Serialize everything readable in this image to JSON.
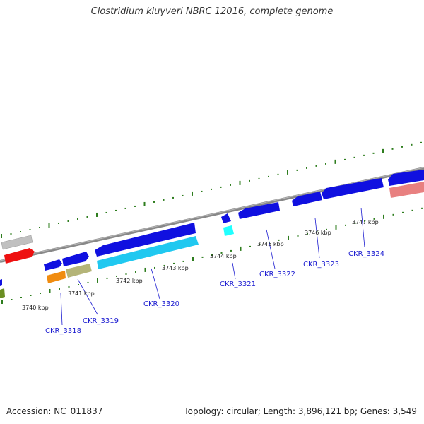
{
  "title": "Clostridium kluyveri NBRC 12016, complete genome",
  "footer": {
    "accession": "Accession: NC_011837",
    "summary": "Topology: circular; Length: 3,896,121 bp; Genes: 3,549"
  },
  "colors": {
    "backbone": "#808080",
    "tick": "#2e7d1e",
    "gene_blue": "#1010e0",
    "gene_cyan": "#20c8f0",
    "gene_red": "#ee1010",
    "gene_grey": "#c0c0c0",
    "gene_orange": "#f08c10",
    "gene_olive": "#b4b478",
    "gene_pink": "#e88080",
    "gene_green": "#6b8e23",
    "label": "#1a1ad0"
  },
  "scale_labels": [
    "3740 kbp",
    "3741 kbp",
    "3742 kbp",
    "3743 kbp",
    "3744 kbp",
    "3745 kbp",
    "3746 kbp",
    "3747 kbp"
  ],
  "gene_labels": [
    "CKR_3318",
    "CKR_3319",
    "CKR_3320",
    "CKR_3321",
    "CKR_3322",
    "CKR_3323",
    "CKR_3324"
  ]
}
